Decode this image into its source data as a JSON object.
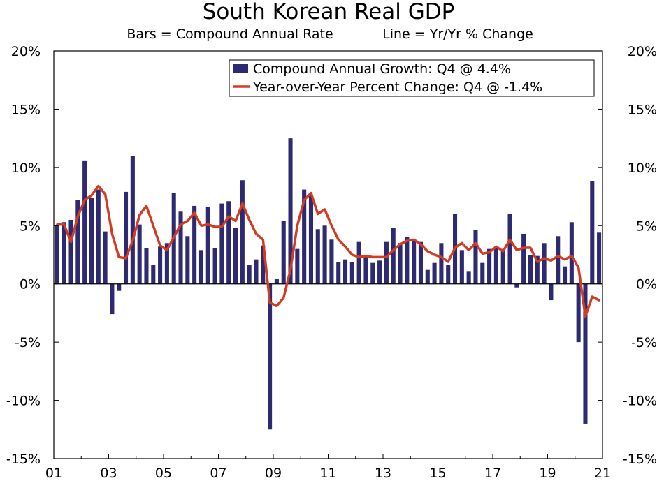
{
  "chart_data": {
    "type": "bar+line",
    "title": "South Korean Real GDP",
    "subtitle_left": "Bars = Compound Annual Rate",
    "subtitle_right": "Line = Yr/Yr % Change",
    "ylim": [
      -15,
      20
    ],
    "y_ticks": [
      "20%",
      "15%",
      "10%",
      "5%",
      "0%",
      "-5%",
      "-10%",
      "-15%"
    ],
    "y_tick_values": [
      20,
      15,
      10,
      5,
      0,
      -5,
      -10,
      -15
    ],
    "x_ticks": [
      "01",
      "03",
      "05",
      "07",
      "09",
      "11",
      "13",
      "15",
      "17",
      "19",
      "21"
    ],
    "quarter_start": 2001,
    "legend": {
      "bar_label": "Compound Annual Growth: Q4 @ 4.4%",
      "line_label": "Year-over-Year Percent Change: Q4 @ -1.4%"
    },
    "colors": {
      "bar": "#2e2a72",
      "line": "#d23c22"
    },
    "series": [
      {
        "name": "Compound Annual Growth",
        "kind": "bar",
        "values": [
          5.0,
          5.3,
          5.5,
          7.2,
          10.6,
          7.4,
          8.1,
          4.5,
          -2.6,
          -0.6,
          7.9,
          11.0,
          5.1,
          3.1,
          1.6,
          3.2,
          3.5,
          7.8,
          6.2,
          4.1,
          6.7,
          2.9,
          6.6,
          3.1,
          6.9,
          7.1,
          4.8,
          8.9,
          1.6,
          2.1,
          3.3,
          -12.5,
          0.4,
          5.4,
          12.5,
          3.0,
          8.1,
          7.6,
          4.7,
          5.0,
          3.8,
          1.9,
          2.1,
          1.9,
          3.6,
          2.4,
          1.8,
          2.0,
          3.6,
          4.8,
          3.5,
          4.0,
          3.8,
          3.6,
          1.2,
          1.8,
          3.5,
          1.6,
          6.0,
          2.9,
          1.1,
          4.6,
          1.8,
          3.0,
          3.2,
          3.0,
          6.0,
          -0.3,
          4.3,
          2.5,
          2.4,
          3.5,
          -1.4,
          4.1,
          1.5,
          5.3,
          -5.0,
          -12.0,
          8.8,
          4.4
        ]
      },
      {
        "name": "Year-over-Year Percent Change",
        "kind": "line",
        "values": [
          5.1,
          5.1,
          3.6,
          5.8,
          7.2,
          7.6,
          8.4,
          7.7,
          4.3,
          2.3,
          2.2,
          3.7,
          5.9,
          6.7,
          5.0,
          3.3,
          2.9,
          4.0,
          5.1,
          5.4,
          6.1,
          5.0,
          5.1,
          4.9,
          4.9,
          5.8,
          5.4,
          6.9,
          5.5,
          4.3,
          3.8,
          -1.6,
          -1.9,
          -1.2,
          1.2,
          5.0,
          7.2,
          7.8,
          6.0,
          6.4,
          5.0,
          3.8,
          3.2,
          2.5,
          2.3,
          2.4,
          2.3,
          2.3,
          2.3,
          2.9,
          3.4,
          3.7,
          3.8,
          3.4,
          2.8,
          2.5,
          2.3,
          1.9,
          3.1,
          3.5,
          2.9,
          3.5,
          2.6,
          2.7,
          3.2,
          2.8,
          3.8,
          2.9,
          3.1,
          3.1,
          1.9,
          2.2,
          2.0,
          2.4,
          2.1,
          2.4,
          1.4,
          -2.8,
          -1.1,
          -1.4
        ]
      }
    ]
  }
}
